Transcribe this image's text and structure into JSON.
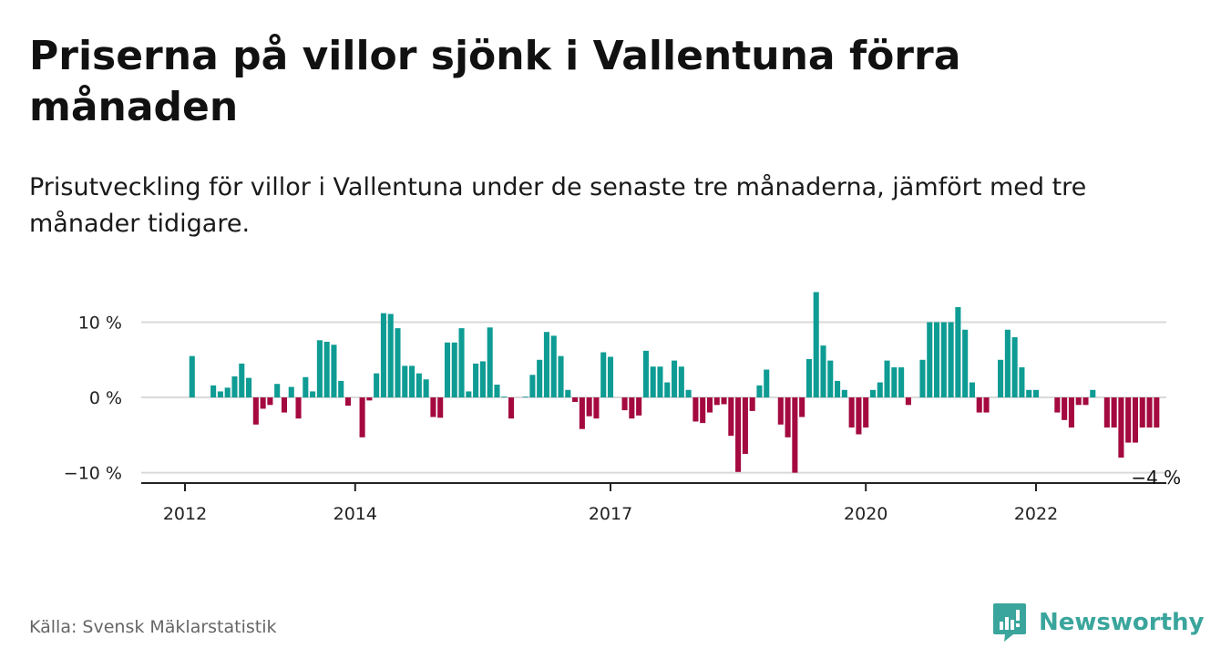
{
  "title": "Priserna på villor sjönk i Vallentuna förra månaden",
  "subtitle": "Prisutveckling för villor i Vallentuna under de senaste tre månaderna, jämfört med tre månader tidigare.",
  "source": "Källa: Svensk Mäklarstatistik",
  "brand": {
    "name": "Newsworthy",
    "logo_icon": "newsworthy-chart-bubble-icon"
  },
  "colors": {
    "positive": "#0e9c94",
    "negative": "#a4093f",
    "grid": "#d9d9d9",
    "axis": "#222222"
  },
  "chart_data": {
    "type": "bar",
    "title": "",
    "xlabel": "",
    "ylabel": "",
    "ylim": [
      -11.5,
      14.3
    ],
    "yticks": [
      {
        "value": 10,
        "label": "10 %"
      },
      {
        "value": 0,
        "label": "0 %"
      },
      {
        "value": -10,
        "label": "−10 %"
      }
    ],
    "xticks": [
      {
        "value": 2012,
        "label": "2012"
      },
      {
        "value": 2014,
        "label": "2014"
      },
      {
        "value": 2017,
        "label": "2017"
      },
      {
        "value": 2020,
        "label": "2020"
      },
      {
        "value": 2022,
        "label": "2022"
      }
    ],
    "x_unit": "year (monthly bars)",
    "grid": true,
    "series": [
      {
        "start": "2012-01",
        "values": [
          0,
          5.5,
          0,
          0,
          1.6,
          0.8,
          1.3,
          2.8,
          4.5,
          2.6,
          -3.6,
          -1.5,
          -1.0,
          1.8,
          -2.0,
          1.4,
          -2.8,
          2.7,
          0.8,
          7.6,
          7.4,
          7.0,
          2.2,
          -1.1,
          0,
          -5.3,
          -0.4,
          3.2,
          11.2,
          11.1,
          9.2,
          4.2,
          4.2,
          3.2,
          2.4,
          -2.6,
          -2.7,
          7.3,
          7.3,
          9.2,
          0.8,
          4.5,
          4.8,
          9.3,
          1.7,
          0.1,
          -2.8,
          0,
          0.1,
          3.0,
          5.0,
          8.7,
          8.2,
          5.5,
          1.0,
          -0.6,
          -4.2,
          -2.5,
          -2.8,
          6.0,
          5.4,
          0,
          -1.7,
          -2.8,
          -2.4,
          6.2,
          4.1,
          4.1,
          2.0,
          4.9,
          4.1,
          1.0,
          -3.2,
          -3.4,
          -2.0,
          -1.0,
          -0.9,
          -5.1,
          -9.9,
          -7.5,
          -1.8,
          1.6,
          3.7,
          0,
          -3.6,
          -5.3,
          -10.0,
          -2.6,
          5.1,
          14.0,
          6.9,
          4.9,
          2.2,
          1.0,
          -4.0,
          -4.9,
          -4.0,
          1.0,
          2.0,
          4.9,
          4.0,
          4.0,
          -1.0,
          0,
          5.0,
          10.0,
          10.0,
          10.0,
          10.0,
          12.0,
          9.0,
          2.0,
          -2.0,
          -2.0,
          0,
          5.0,
          9.0,
          8.0,
          4.0,
          1.0,
          1.0,
          0,
          0,
          -2.0,
          -3.0,
          -4.0,
          -1.0,
          -1.0,
          1.0,
          0,
          -4.0,
          -4.0,
          -8.0,
          -6.0,
          -6.0,
          -4.0,
          -4.0,
          -4.0
        ]
      }
    ],
    "end_label": "−4 %"
  }
}
